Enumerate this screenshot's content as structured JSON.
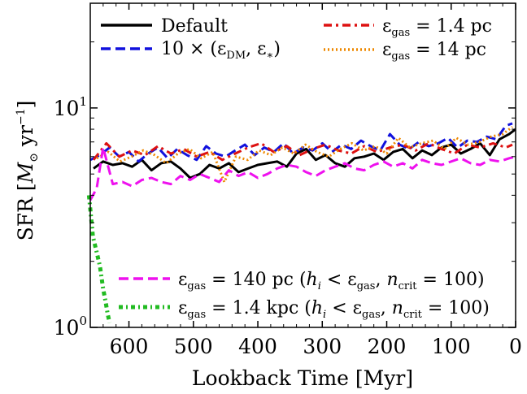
{
  "chart_data": {
    "type": "line",
    "xlabel": "Lookback Time  [Myr]",
    "ylabel": "SFR  [M⊙ yr⁻¹]",
    "xlim": [
      660,
      0
    ],
    "ylim": [
      1,
      30
    ],
    "yscale": "log",
    "xticks": [
      {
        "v": 600,
        "label": "600"
      },
      {
        "v": 500,
        "label": "500"
      },
      {
        "v": 400,
        "label": "400"
      },
      {
        "v": 300,
        "label": "300"
      },
      {
        "v": 200,
        "label": "200"
      },
      {
        "v": 100,
        "label": "100"
      },
      {
        "v": 0,
        "label": "0"
      }
    ],
    "yticks": [
      {
        "v": 1,
        "base": "10",
        "exp": "0"
      },
      {
        "v": 10,
        "base": "10",
        "exp": "1"
      }
    ],
    "grid": false,
    "series": [
      {
        "name": "Default",
        "color": "#000000",
        "style": "solid",
        "legend": "top-left",
        "x": [
          655,
          640,
          625,
          610,
          595,
          580,
          565,
          550,
          535,
          520,
          505,
          490,
          475,
          460,
          445,
          430,
          415,
          400,
          385,
          370,
          355,
          340,
          325,
          310,
          295,
          280,
          265,
          250,
          235,
          220,
          205,
          190,
          175,
          160,
          145,
          130,
          115,
          100,
          85,
          70,
          55,
          40,
          25,
          10,
          0
        ],
        "y": [
          5.3,
          5.7,
          5.5,
          5.6,
          5.4,
          5.8,
          5.2,
          5.6,
          5.7,
          5.3,
          4.8,
          5.0,
          5.5,
          5.3,
          5.6,
          5.1,
          5.3,
          5.5,
          5.6,
          5.7,
          5.4,
          6.2,
          6.5,
          5.8,
          6.1,
          5.6,
          5.4,
          5.9,
          6.0,
          6.2,
          5.8,
          6.3,
          6.5,
          5.9,
          6.4,
          6.1,
          6.6,
          6.8,
          6.2,
          6.5,
          6.9,
          6.1,
          7.2,
          7.6,
          8.0
        ]
      },
      {
        "name": "10 × (εDM, ε∗)",
        "color": "#1111dd",
        "style": "dashed",
        "legend": "top-left",
        "x": [
          660,
          645,
          630,
          615,
          600,
          585,
          570,
          555,
          540,
          525,
          510,
          495,
          480,
          465,
          450,
          435,
          420,
          405,
          390,
          375,
          360,
          345,
          330,
          315,
          300,
          285,
          270,
          255,
          240,
          225,
          210,
          195,
          180,
          165,
          150,
          135,
          120,
          105,
          90,
          75,
          60,
          45,
          30,
          15,
          5
        ],
        "y": [
          5.8,
          6.1,
          6.6,
          6.0,
          6.3,
          5.7,
          6.2,
          6.6,
          5.9,
          6.5,
          6.1,
          5.8,
          6.7,
          6.2,
          6.0,
          6.4,
          6.8,
          6.1,
          6.6,
          6.3,
          6.9,
          6.2,
          6.6,
          6.4,
          6.9,
          6.3,
          6.8,
          6.5,
          7.1,
          6.7,
          6.4,
          7.6,
          6.8,
          6.5,
          7.0,
          6.7,
          6.9,
          7.3,
          6.6,
          7.1,
          7.0,
          7.4,
          7.2,
          8.3,
          8.5
        ]
      },
      {
        "name": "εgas = 1.4 pc",
        "color": "#dd1111",
        "style": "dashdot",
        "legend": "top-right",
        "x": [
          655,
          635,
          615,
          595,
          575,
          555,
          535,
          515,
          495,
          475,
          455,
          435,
          415,
          395,
          375,
          355,
          335,
          315,
          295,
          275,
          255,
          235,
          215,
          195,
          175,
          155,
          135,
          115,
          95,
          75,
          55,
          35,
          15,
          5
        ],
        "y": [
          5.8,
          6.9,
          6.0,
          6.4,
          6.1,
          6.7,
          6.2,
          6.5,
          6.0,
          6.3,
          5.8,
          6.2,
          6.6,
          6.9,
          6.3,
          6.7,
          6.1,
          6.5,
          6.8,
          6.4,
          6.2,
          6.7,
          6.3,
          6.6,
          6.8,
          6.4,
          6.9,
          6.5,
          6.2,
          6.8,
          6.6,
          6.9,
          6.6,
          6.8
        ]
      },
      {
        "name": "εgas = 14 pc",
        "color": "#ee8800",
        "style": "dotted",
        "legend": "top-right",
        "x": [
          650,
          632,
          614,
          596,
          578,
          560,
          542,
          524,
          506,
          488,
          470,
          452,
          434,
          416,
          398,
          380,
          362,
          344,
          326,
          308,
          290,
          272,
          254,
          236,
          218,
          200,
          182,
          164,
          146,
          128,
          110,
          92,
          74,
          56,
          38,
          20,
          5
        ],
        "y": [
          5.9,
          6.3,
          5.7,
          6.0,
          6.4,
          6.1,
          5.6,
          6.2,
          6.5,
          5.9,
          6.3,
          4.6,
          6.0,
          5.8,
          6.4,
          6.1,
          6.6,
          6.2,
          6.8,
          6.3,
          6.0,
          6.5,
          6.9,
          6.4,
          6.7,
          6.2,
          7.3,
          6.6,
          6.9,
          7.1,
          6.5,
          7.3,
          6.8,
          7.0,
          7.4,
          7.6,
          8.2
        ]
      },
      {
        "name": "εgas = 140 pc (hi < εgas, ncrit = 100)",
        "color": "#ee11ee",
        "style": "dashed",
        "legend": "bottom-right",
        "x": [
          660,
          650,
          640,
          625,
          610,
          595,
          580,
          565,
          550,
          535,
          520,
          505,
          490,
          475,
          460,
          445,
          430,
          415,
          400,
          385,
          370,
          355,
          340,
          325,
          310,
          295,
          280,
          265,
          250,
          235,
          220,
          205,
          190,
          175,
          160,
          145,
          130,
          115,
          100,
          85,
          70,
          55,
          40,
          25,
          10,
          0
        ],
        "y": [
          3.8,
          4.3,
          6.6,
          4.5,
          4.6,
          4.4,
          4.7,
          4.8,
          4.6,
          4.5,
          4.9,
          4.7,
          5.0,
          4.8,
          4.6,
          5.2,
          4.9,
          5.1,
          4.8,
          5.0,
          5.3,
          5.5,
          5.4,
          5.1,
          4.9,
          5.2,
          5.4,
          5.6,
          5.3,
          5.2,
          5.5,
          5.7,
          5.4,
          5.6,
          5.3,
          5.8,
          5.6,
          5.5,
          5.7,
          5.9,
          5.6,
          5.5,
          5.8,
          5.7,
          5.9,
          6.0
        ]
      },
      {
        "name": "εgas = 1.4 kpc (hi < εgas, ncrit = 100)",
        "color": "#22bb22",
        "style": "dotted",
        "legend": "bottom-right",
        "x": [
          662,
          656,
          650,
          645,
          640,
          636,
          633,
          630
        ],
        "y": [
          4.0,
          2.6,
          2.2,
          1.9,
          1.5,
          1.3,
          1.15,
          1.05
        ]
      }
    ]
  }
}
